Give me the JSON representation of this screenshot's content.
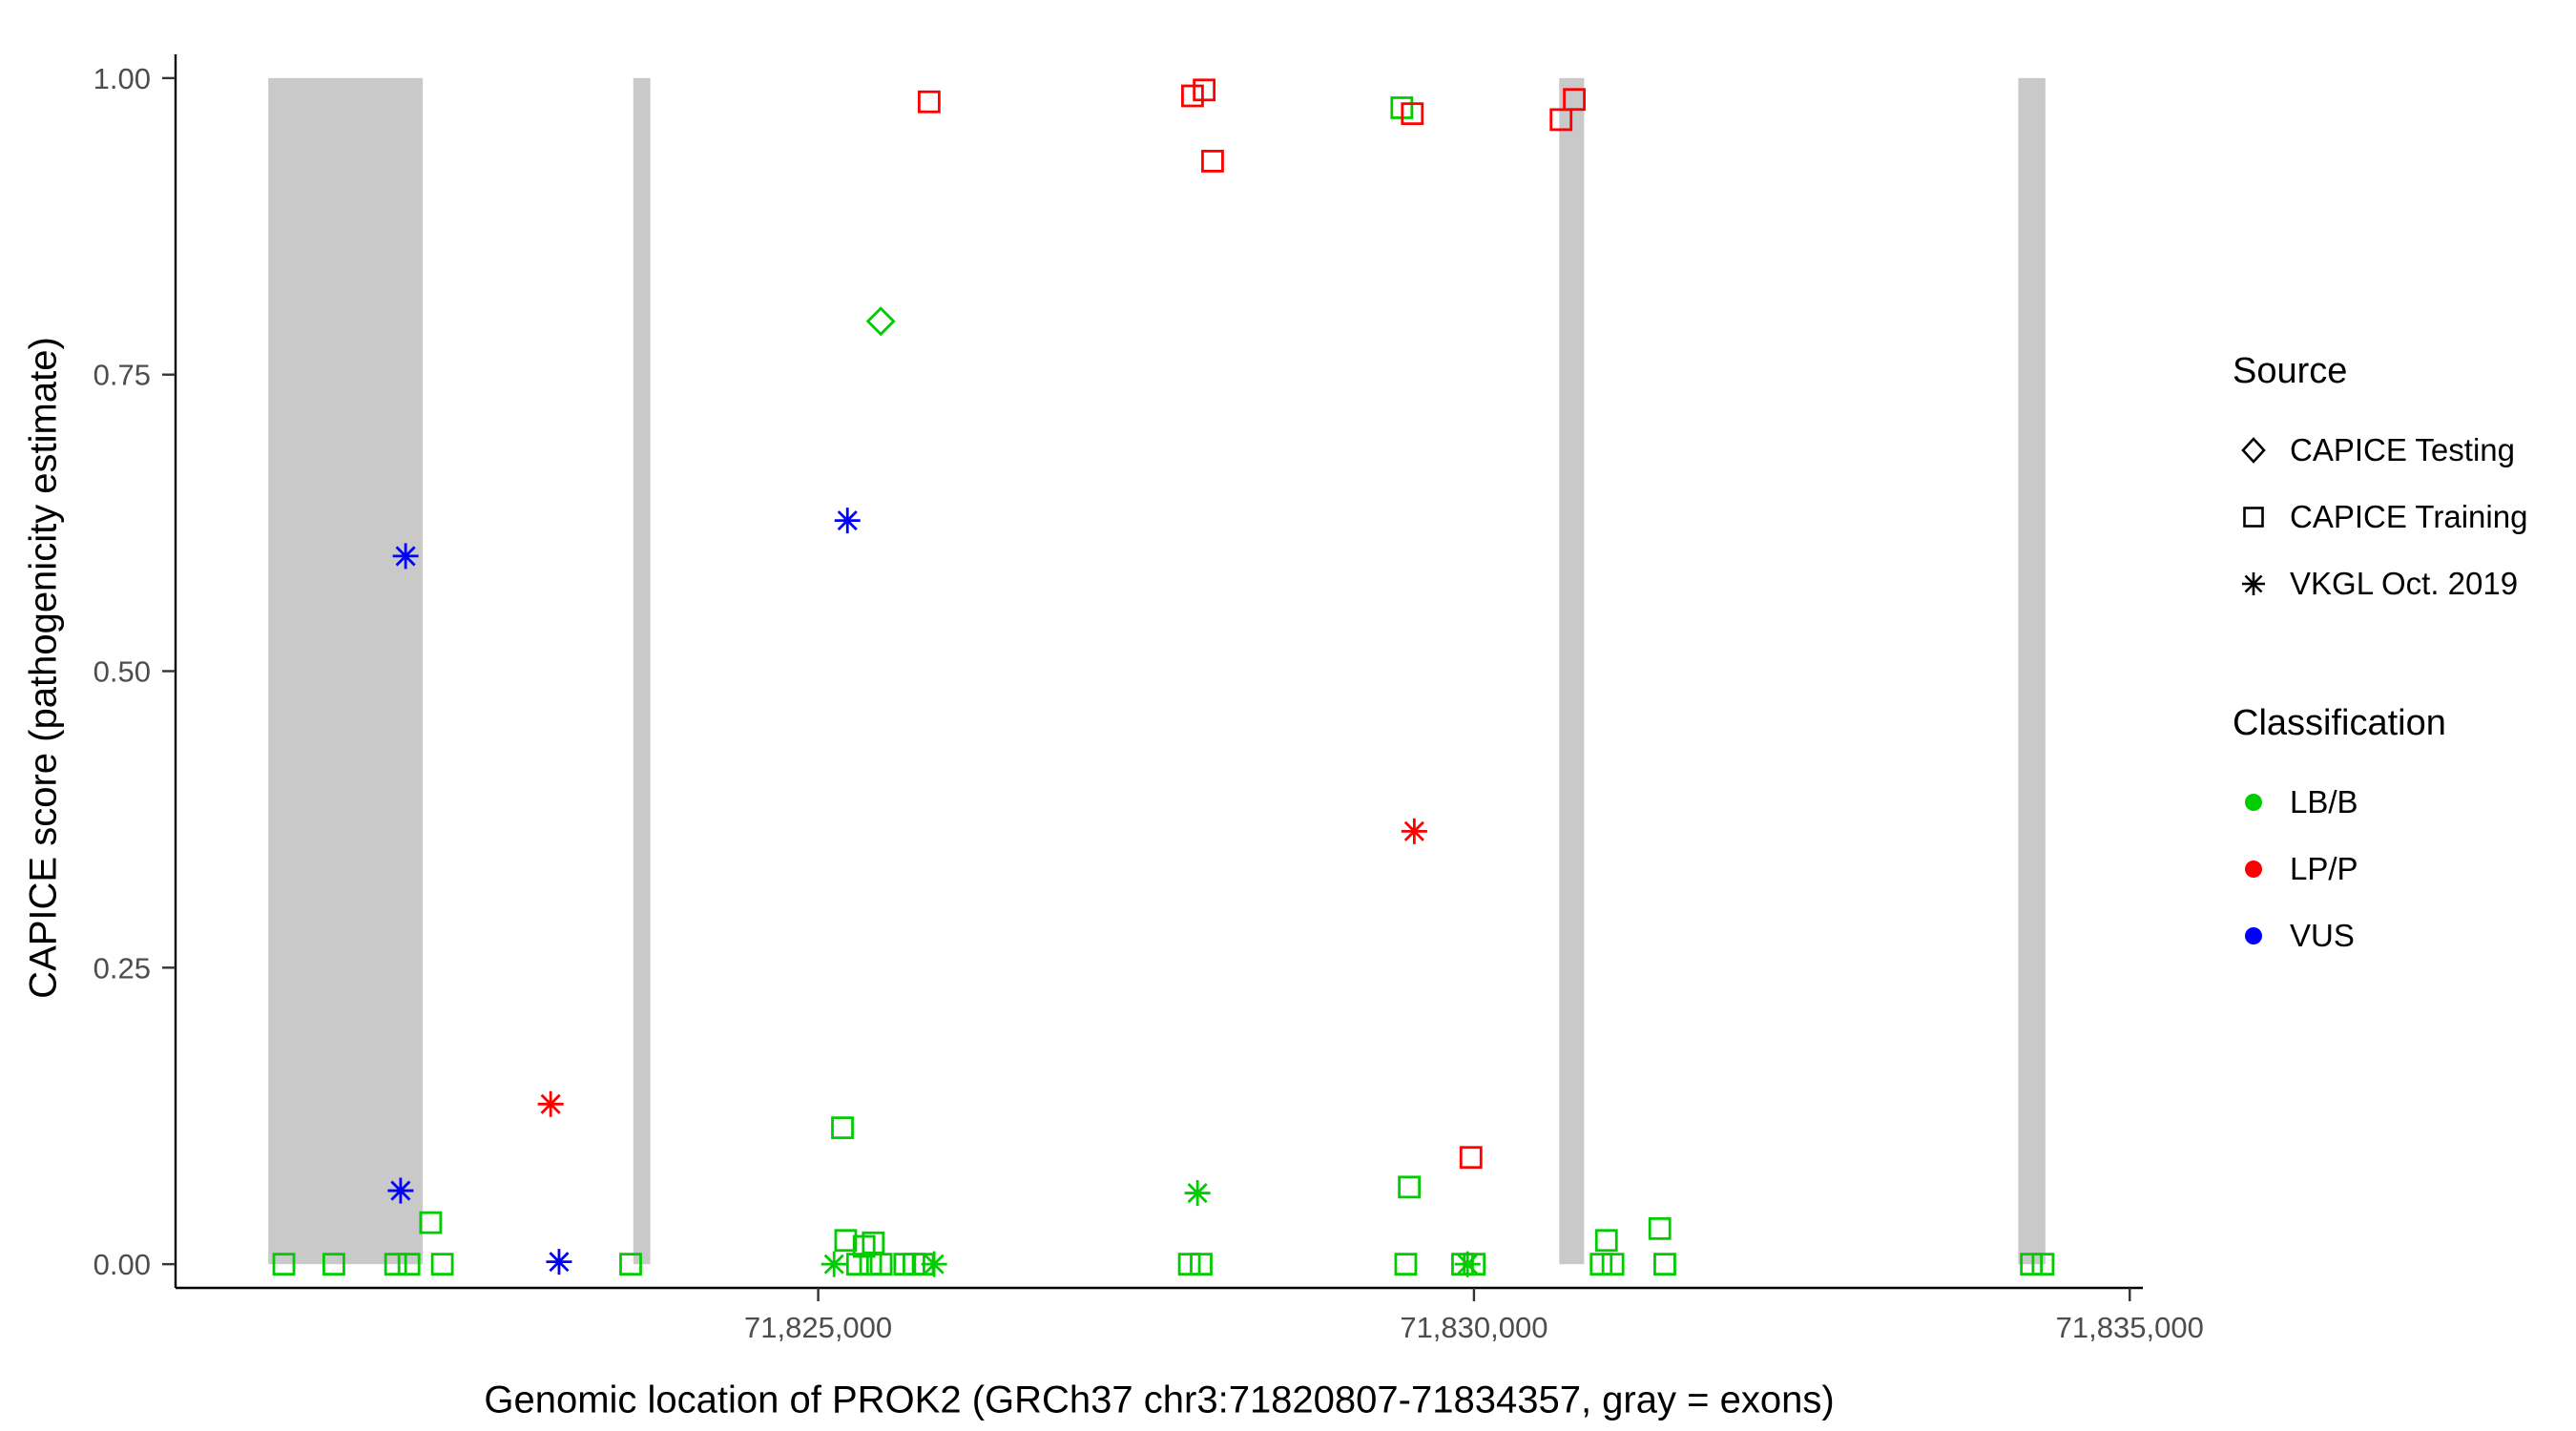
{
  "chart_data": {
    "type": "scatter",
    "title": "",
    "xlabel": "Genomic location of PROK2 (GRCh37 chr3:71820807-71834357, gray = exons)",
    "ylabel": "CAPICE score (pathogenicity estimate)",
    "xlim": [
      71820100,
      71835100
    ],
    "ylim": [
      -0.02,
      1.02
    ],
    "x_ticks": [
      {
        "value": 71825000,
        "label": "71,825,000"
      },
      {
        "value": 71830000,
        "label": "71,830,000"
      },
      {
        "value": 71835000,
        "label": "71,835,000"
      }
    ],
    "y_ticks": [
      {
        "value": 0.0,
        "label": "0.00"
      },
      {
        "value": 0.25,
        "label": "0.25"
      },
      {
        "value": 0.5,
        "label": "0.50"
      },
      {
        "value": 0.75,
        "label": "0.75"
      },
      {
        "value": 1.0,
        "label": "1.00"
      }
    ],
    "exons": [
      {
        "start": 71820807,
        "end": 71821985
      },
      {
        "start": 71823590,
        "end": 71823720
      },
      {
        "start": 71830650,
        "end": 71830840
      },
      {
        "start": 71834150,
        "end": 71834357
      }
    ],
    "colors": {
      "LB/B": "#00cc00",
      "LP/P": "#ff0000",
      "VUS": "#0000ff",
      "exon": "#c9c9c9",
      "axis": "#000000",
      "tick_label": "#4d4d4d"
    },
    "legend": {
      "source_title": "Source",
      "source_items": [
        {
          "label": "CAPICE Testing",
          "shape": "diamond"
        },
        {
          "label": "CAPICE Training",
          "shape": "square"
        },
        {
          "label": "VKGL Oct. 2019",
          "shape": "asterisk"
        }
      ],
      "class_title": "Classification",
      "class_items": [
        {
          "label": "LB/B",
          "color_key": "LB/B"
        },
        {
          "label": "LP/P",
          "color_key": "LP/P"
        },
        {
          "label": "VUS",
          "color_key": "VUS"
        }
      ]
    },
    "points": [
      {
        "x": 71820926,
        "y": 0.0,
        "shape": "square",
        "class": "LB/B"
      },
      {
        "x": 71821307,
        "y": 0.0,
        "shape": "square",
        "class": "LB/B"
      },
      {
        "x": 71821778,
        "y": 0.0,
        "shape": "square",
        "class": "LB/B"
      },
      {
        "x": 71821880,
        "y": 0.0,
        "shape": "square",
        "class": "LB/B"
      },
      {
        "x": 71822045,
        "y": 0.035,
        "shape": "square",
        "class": "LB/B"
      },
      {
        "x": 71822134,
        "y": 0.0,
        "shape": "square",
        "class": "LB/B"
      },
      {
        "x": 71823570,
        "y": 0.0,
        "shape": "square",
        "class": "LB/B"
      },
      {
        "x": 71825185,
        "y": 0.115,
        "shape": "square",
        "class": "LB/B"
      },
      {
        "x": 71825210,
        "y": 0.02,
        "shape": "square",
        "class": "LB/B"
      },
      {
        "x": 71825350,
        "y": 0.015,
        "shape": "square",
        "class": "LB/B"
      },
      {
        "x": 71825420,
        "y": 0.018,
        "shape": "square",
        "class": "LB/B"
      },
      {
        "x": 71825300,
        "y": 0.0,
        "shape": "square",
        "class": "LB/B"
      },
      {
        "x": 71825400,
        "y": 0.0,
        "shape": "square",
        "class": "LB/B"
      },
      {
        "x": 71825480,
        "y": 0.0,
        "shape": "square",
        "class": "LB/B"
      },
      {
        "x": 71825660,
        "y": 0.0,
        "shape": "square",
        "class": "LB/B"
      },
      {
        "x": 71825730,
        "y": 0.0,
        "shape": "square",
        "class": "LB/B"
      },
      {
        "x": 71825800,
        "y": 0.0,
        "shape": "square",
        "class": "LB/B"
      },
      {
        "x": 71827830,
        "y": 0.0,
        "shape": "square",
        "class": "LB/B"
      },
      {
        "x": 71827920,
        "y": 0.0,
        "shape": "square",
        "class": "LB/B"
      },
      {
        "x": 71829450,
        "y": 0.975,
        "shape": "square",
        "class": "LB/B"
      },
      {
        "x": 71829480,
        "y": 0.0,
        "shape": "square",
        "class": "LB/B"
      },
      {
        "x": 71829507,
        "y": 0.065,
        "shape": "square",
        "class": "LB/B"
      },
      {
        "x": 71829913,
        "y": 0.0,
        "shape": "square",
        "class": "LB/B"
      },
      {
        "x": 71830002,
        "y": 0.0,
        "shape": "square",
        "class": "LB/B"
      },
      {
        "x": 71830970,
        "y": 0.0,
        "shape": "square",
        "class": "LB/B"
      },
      {
        "x": 71831010,
        "y": 0.02,
        "shape": "square",
        "class": "LB/B"
      },
      {
        "x": 71831060,
        "y": 0.0,
        "shape": "square",
        "class": "LB/B"
      },
      {
        "x": 71831417,
        "y": 0.03,
        "shape": "square",
        "class": "LB/B"
      },
      {
        "x": 71831455,
        "y": 0.0,
        "shape": "square",
        "class": "LB/B"
      },
      {
        "x": 71834250,
        "y": 0.0,
        "shape": "square",
        "class": "LB/B"
      },
      {
        "x": 71834339,
        "y": 0.0,
        "shape": "square",
        "class": "LB/B"
      },
      {
        "x": 71825846,
        "y": 0.98,
        "shape": "square",
        "class": "LP/P"
      },
      {
        "x": 71827854,
        "y": 0.985,
        "shape": "square",
        "class": "LP/P"
      },
      {
        "x": 71827943,
        "y": 0.99,
        "shape": "square",
        "class": "LP/P"
      },
      {
        "x": 71828007,
        "y": 0.93,
        "shape": "square",
        "class": "LP/P"
      },
      {
        "x": 71829530,
        "y": 0.97,
        "shape": "square",
        "class": "LP/P"
      },
      {
        "x": 71830664,
        "y": 0.965,
        "shape": "square",
        "class": "LP/P"
      },
      {
        "x": 71830765,
        "y": 0.982,
        "shape": "square",
        "class": "LP/P"
      },
      {
        "x": 71829977,
        "y": 0.09,
        "shape": "square",
        "class": "LP/P"
      },
      {
        "x": 71822960,
        "y": 0.135,
        "shape": "asterisk",
        "class": "LP/P"
      },
      {
        "x": 71829545,
        "y": 0.365,
        "shape": "asterisk",
        "class": "LP/P"
      },
      {
        "x": 71821854,
        "y": 0.597,
        "shape": "asterisk",
        "class": "VUS"
      },
      {
        "x": 71825223,
        "y": 0.627,
        "shape": "asterisk",
        "class": "VUS"
      },
      {
        "x": 71821816,
        "y": 0.062,
        "shape": "asterisk",
        "class": "VUS"
      },
      {
        "x": 71823024,
        "y": 0.002,
        "shape": "asterisk",
        "class": "VUS"
      },
      {
        "x": 71825121,
        "y": 0.0,
        "shape": "asterisk",
        "class": "LB/B"
      },
      {
        "x": 71825884,
        "y": 0.0,
        "shape": "asterisk",
        "class": "LB/B"
      },
      {
        "x": 71827892,
        "y": 0.06,
        "shape": "asterisk",
        "class": "LB/B"
      },
      {
        "x": 71829951,
        "y": 0.0,
        "shape": "asterisk",
        "class": "LB/B"
      },
      {
        "x": 71825477,
        "y": 0.795,
        "shape": "diamond",
        "class": "LB/B"
      }
    ]
  }
}
